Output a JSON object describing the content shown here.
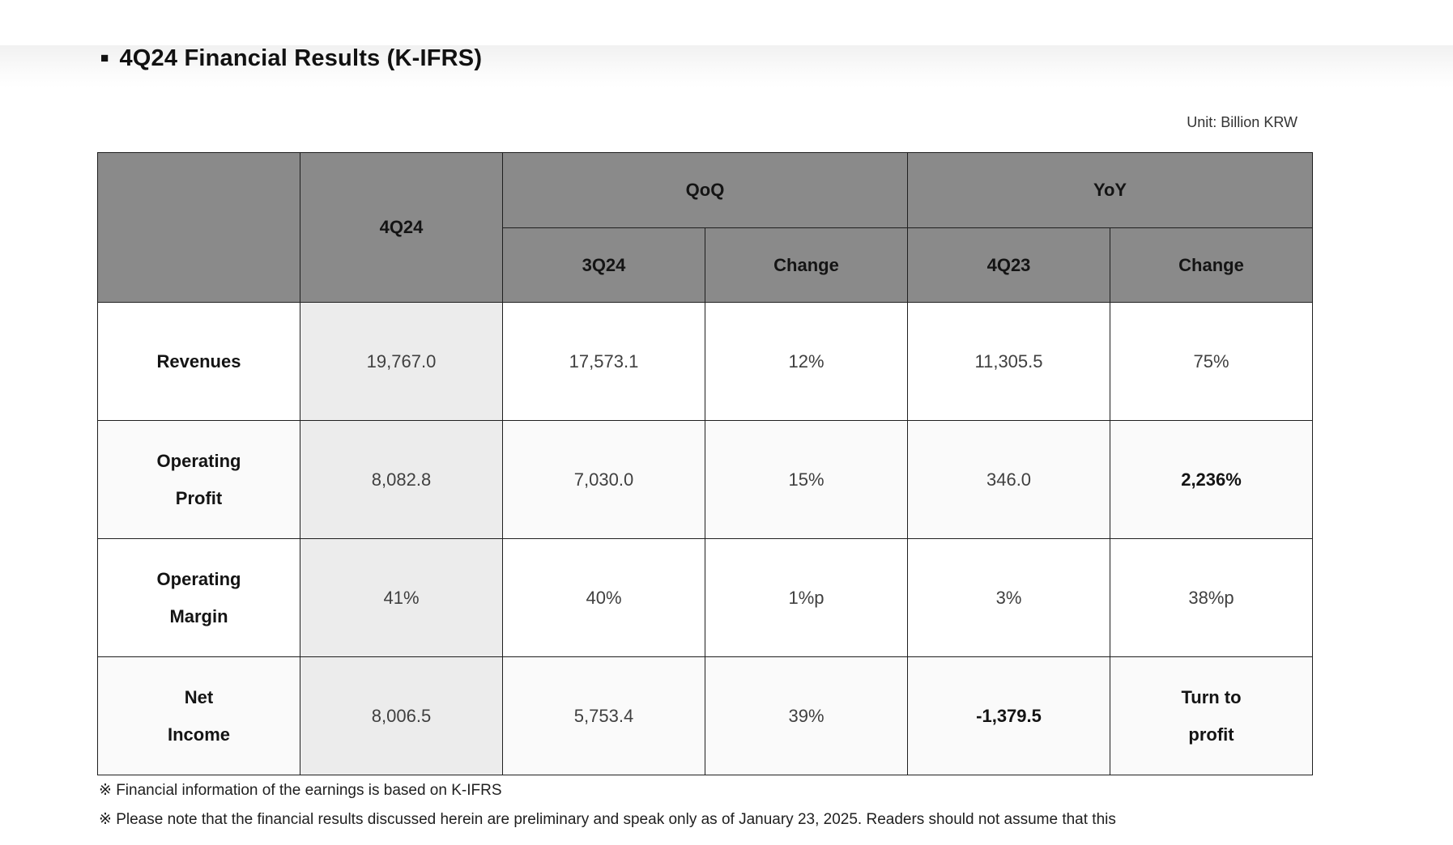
{
  "page": {
    "title_bullet": "■",
    "title": "4Q24 Financial Results (K-IFRS)",
    "unit_label": "Unit: Billion KRW",
    "footnote_1": "※ Financial information of the earnings is based on K-IFRS",
    "footnote_2": "※ Please note that the financial results discussed herein are preliminary and speak only as of January 23, 2025. Readers should not assume that this"
  },
  "colors": {
    "header_bg": "#8a8a8a",
    "highlight_column_bg": "#ececec",
    "alt_row_bg": "#fafafa",
    "border": "#1f1f1f"
  },
  "table": {
    "headers": {
      "corner": "",
      "q4_24": "4Q24",
      "qoq_group": "QoQ",
      "yoy_group": "YoY",
      "qoq_prior": "3Q24",
      "qoq_change": "Change",
      "yoy_prior": "4Q23",
      "yoy_change": "Change"
    },
    "rows": [
      {
        "label_line1": "Revenues",
        "label_line2": "",
        "q4_24": "19,767.0",
        "q3_24": "17,573.1",
        "qoq_change": "12%",
        "q4_23": "11,305.5",
        "yoy_change_line1": "75%",
        "yoy_change_line2": ""
      },
      {
        "label_line1": "Operating",
        "label_line2": "Profit",
        "q4_24": "8,082.8",
        "q3_24": "7,030.0",
        "qoq_change": "15%",
        "q4_23": "346.0",
        "yoy_change_line1": "2,236%",
        "yoy_change_line2": ""
      },
      {
        "label_line1": "Operating",
        "label_line2": "Margin",
        "q4_24": "41%",
        "q3_24": "40%",
        "qoq_change": "1%p",
        "q4_23": "3%",
        "yoy_change_line1": "38%p",
        "yoy_change_line2": ""
      },
      {
        "label_line1": "Net",
        "label_line2": "Income",
        "q4_24": "8,006.5",
        "q3_24": "5,753.4",
        "qoq_change": "39%",
        "q4_23": "-1,379.5",
        "yoy_change_line1": "Turn to",
        "yoy_change_line2": "profit"
      }
    ]
  }
}
